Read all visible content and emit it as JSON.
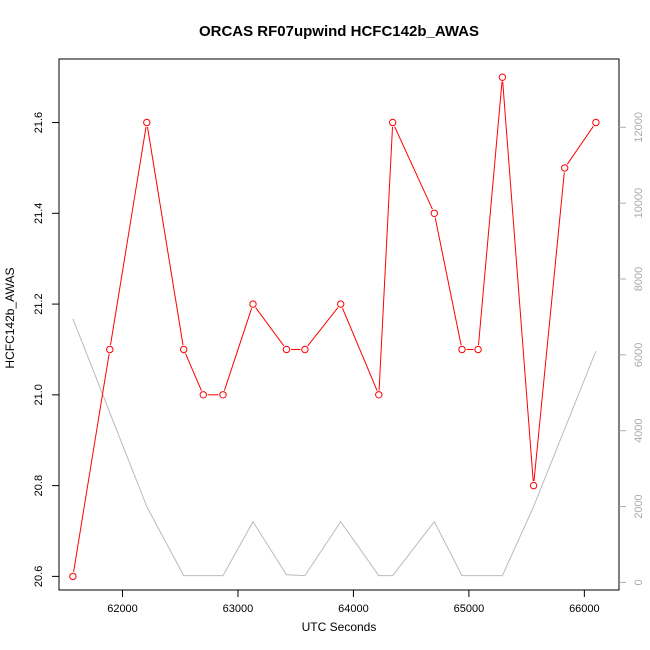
{
  "chart_data": {
    "type": "line",
    "title": "ORCAS RF07upwind HCFC142b_AWAS",
    "xlabel": "UTC Seconds",
    "ylabel": "HCFC142b_AWAS",
    "xlim": [
      61450,
      66300
    ],
    "ylim": [
      20.57,
      21.74
    ],
    "y2lim": [
      -200,
      13800
    ],
    "x_ticks": [
      62000,
      63000,
      64000,
      65000,
      66000
    ],
    "y_ticks": [
      20.6,
      20.8,
      21.0,
      21.2,
      21.4,
      21.6
    ],
    "y2_ticks": [
      0,
      2000,
      4000,
      6000,
      8000,
      10000,
      12000
    ],
    "grid": false,
    "colors": {
      "primary": "#ff0000",
      "secondary": "#bbbbbb",
      "right_axis": "#aaaaaa"
    },
    "series": [
      {
        "axis": "left",
        "marker": "open-circle",
        "x": [
          61570,
          61890,
          62210,
          62530,
          62700,
          62870,
          63130,
          63420,
          63580,
          63890,
          64220,
          64340,
          64700,
          64940,
          65080,
          65290,
          65560,
          65830,
          66100
        ],
        "y": [
          20.6,
          21.1,
          21.6,
          21.1,
          21.0,
          21.0,
          21.2,
          21.1,
          21.1,
          21.2,
          21.0,
          21.6,
          21.4,
          21.1,
          21.1,
          21.7,
          20.8,
          21.5,
          21.6
        ]
      },
      {
        "axis": "right",
        "marker": "none",
        "x": [
          61570,
          62210,
          62530,
          62870,
          63130,
          63420,
          63580,
          63890,
          64220,
          64340,
          64700,
          64940,
          65080,
          65290,
          65560,
          66100
        ],
        "y": [
          6950,
          2000,
          180,
          180,
          1600,
          200,
          180,
          1600,
          180,
          180,
          1600,
          180,
          180,
          180,
          2000,
          6100
        ]
      }
    ]
  }
}
